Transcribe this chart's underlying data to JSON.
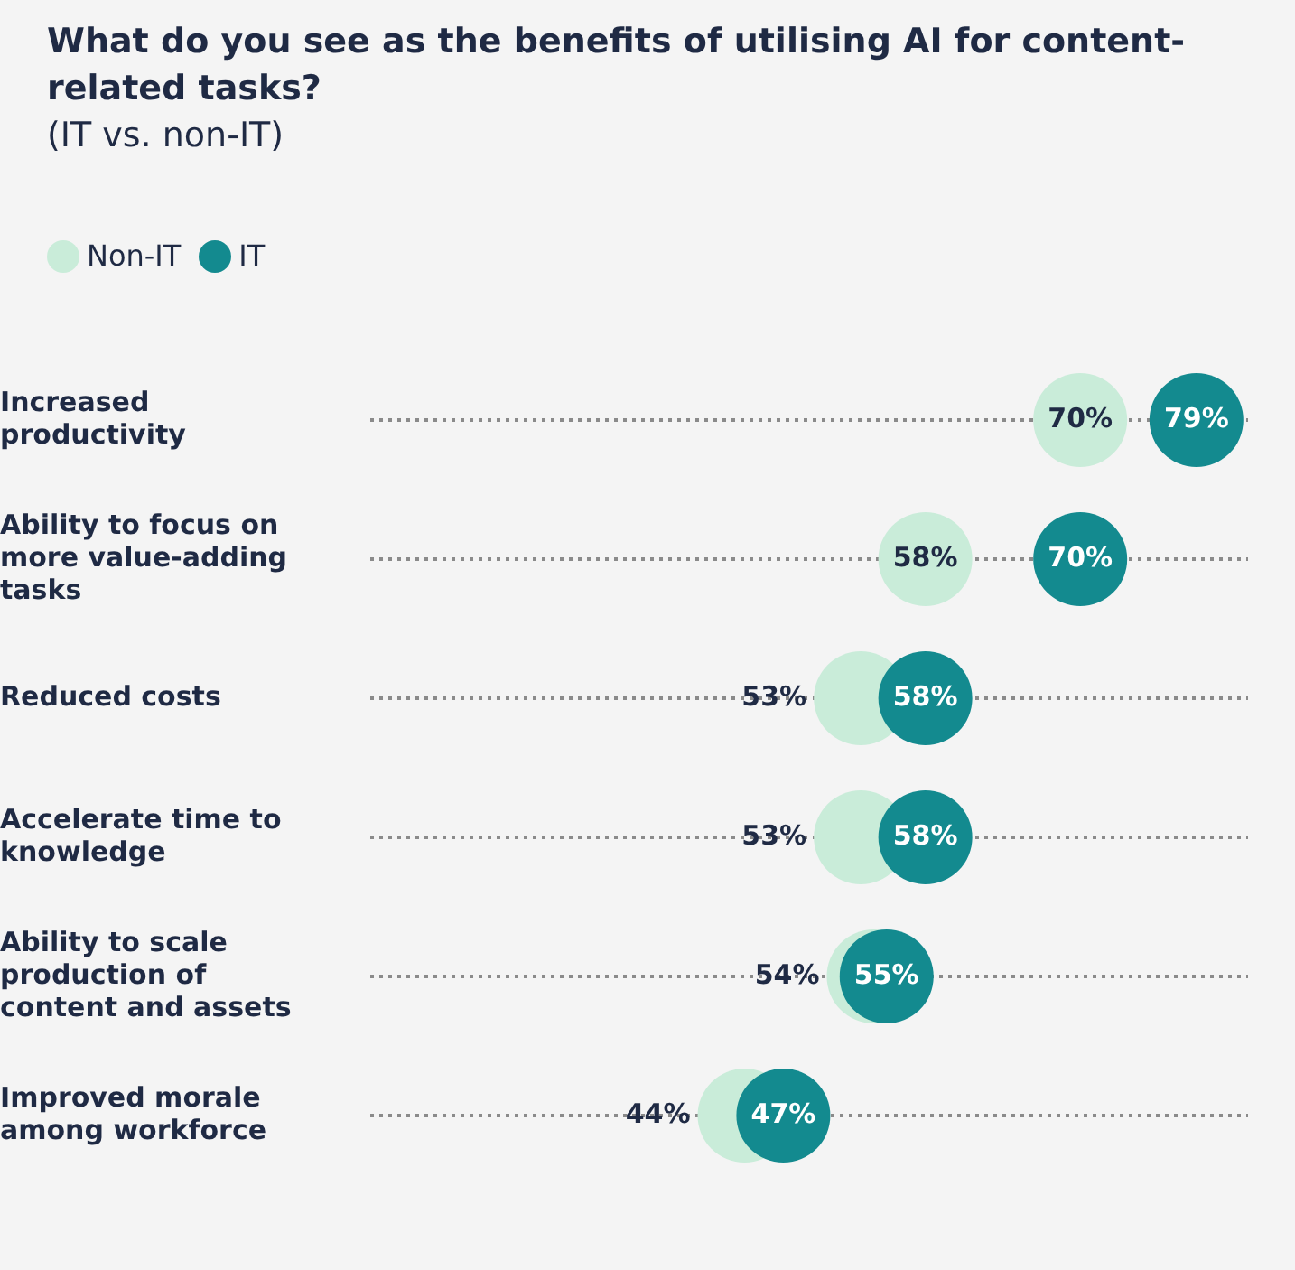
{
  "chart_data": {
    "type": "scatter",
    "orientation": "horizontal",
    "title": "What do you see as the benefits of utilising AI for content-related tasks?",
    "subtitle": "(IT vs. non-IT)",
    "categories": [
      "Increased productivity",
      "Ability to focus on more value-adding tasks",
      "Reduced costs",
      "Accelerate time to knowledge",
      "Ability to scale production of content and assets",
      "Improved morale among workforce"
    ],
    "series": [
      {
        "name": "Non-IT",
        "color": "#c9ecd9",
        "values": [
          70,
          58,
          53,
          53,
          54,
          44
        ],
        "value_labels": [
          "70%",
          "58%",
          "53%",
          "53%",
          "54%",
          "44%"
        ]
      },
      {
        "name": "IT",
        "color": "#138a8f",
        "values": [
          79,
          70,
          58,
          58,
          55,
          47
        ],
        "value_labels": [
          "79%",
          "70%",
          "58%",
          "58%",
          "55%",
          "47%"
        ]
      }
    ],
    "xlim": [
      15,
      83
    ],
    "tick_labels": "y",
    "grid": "y",
    "legend": "top left",
    "marker": "circle"
  }
}
